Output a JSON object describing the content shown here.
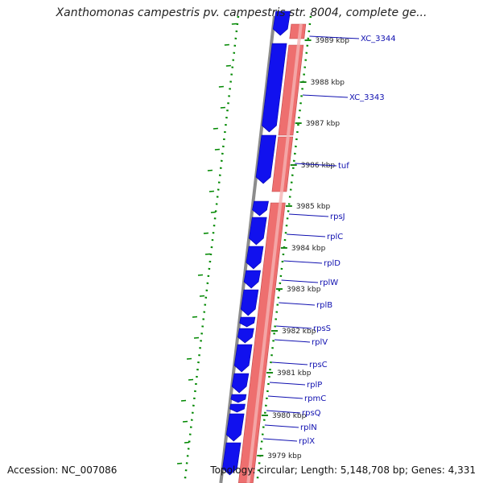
{
  "title": "Xanthomonas campestris pv. campestris str. 8004, complete ge...",
  "accession": "Accession: NC_007086",
  "summary": "Topology: circular; Length: 5,148,708 bp; Genes: 4,331",
  "colors": {
    "forward_gene": "#1111ee",
    "reverse_gene": "#ee6f6f",
    "backbone": "#8c8c8c",
    "gc_skew": "#008800",
    "label_text": "#1010b0",
    "tick_mark": "#1a8a1a"
  },
  "ticks": [
    {
      "label": "3989 kbp"
    },
    {
      "label": "3988 kbp"
    },
    {
      "label": "3987 kbp"
    },
    {
      "label": "3986 kbp"
    },
    {
      "label": "3985 kbp"
    },
    {
      "label": "3984 kbp"
    },
    {
      "label": "3983 kbp"
    },
    {
      "label": "3982 kbp"
    },
    {
      "label": "3981 kbp"
    },
    {
      "label": "3980 kbp"
    },
    {
      "label": "3979 kbp"
    }
  ],
  "genes": [
    {
      "name": "XC_3344"
    },
    {
      "name": "XC_3343"
    },
    {
      "name": "tuf"
    },
    {
      "name": "rpsJ"
    },
    {
      "name": "rplC"
    },
    {
      "name": "rplD"
    },
    {
      "name": "rplW"
    },
    {
      "name": "rplB"
    },
    {
      "name": "rpsS"
    },
    {
      "name": "rplV"
    },
    {
      "name": "rpsC"
    },
    {
      "name": "rplP"
    },
    {
      "name": "rpmC"
    },
    {
      "name": "rpsQ"
    },
    {
      "name": "rplN"
    },
    {
      "name": "rplX"
    }
  ]
}
